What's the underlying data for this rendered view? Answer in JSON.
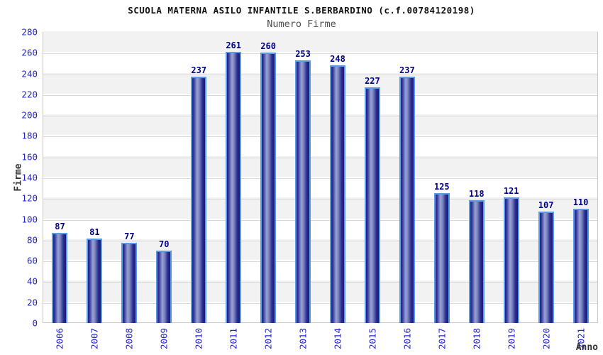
{
  "header": {
    "title": "SCUOLA MATERNA ASILO INFANTILE S.BERBARDINO (c.f.00784120198)",
    "subtitle": "Numero Firme"
  },
  "chart_data": {
    "type": "bar",
    "title": "SCUOLA MATERNA ASILO INFANTILE S.BERBARDINO (c.f.00784120198)",
    "subtitle": "Numero Firme",
    "categories": [
      "2006",
      "2007",
      "2008",
      "2009",
      "2010",
      "2011",
      "2012",
      "2013",
      "2014",
      "2015",
      "2016",
      "2017",
      "2018",
      "2019",
      "2020",
      "2021"
    ],
    "values": [
      87,
      81,
      77,
      70,
      237,
      261,
      260,
      253,
      248,
      227,
      237,
      125,
      118,
      121,
      107,
      110
    ],
    "xlabel": "Anno",
    "ylabel": "Firme",
    "ylim": [
      0,
      280
    ],
    "ytick_step": 20,
    "yticks": [
      0,
      20,
      40,
      60,
      80,
      100,
      120,
      140,
      160,
      180,
      200,
      220,
      240,
      260,
      280
    ],
    "grid": "horizontal",
    "legend": "none",
    "colors": {
      "bar_fill_dark": "#20208c",
      "bar_fill_light": "#9aa2d2",
      "bar_border": "#5b9ce0",
      "value_label": "#00008b",
      "tick_label": "#2424cc",
      "band_gray": "#f2f2f2",
      "gridline": "#d9d9d9",
      "plot_border": "#c9c9c9",
      "axis_title": "#333333",
      "title_text": "#111111",
      "subtitle_text": "#4d4d4d"
    }
  }
}
